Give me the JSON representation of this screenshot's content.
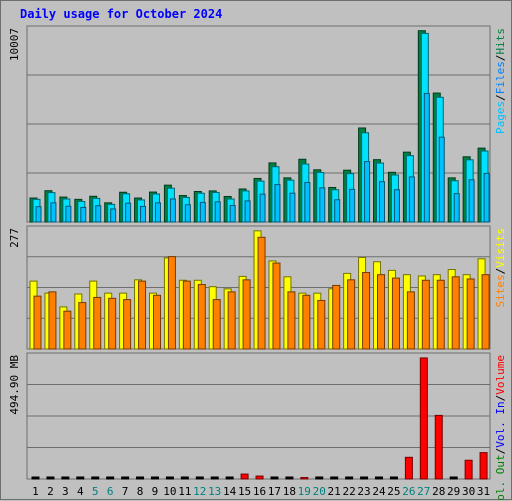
{
  "header": {
    "title": "Daily usage for October 2024"
  },
  "chart_data": {
    "type": "bar",
    "title": "Daily usage for October 2024",
    "days": [
      "1",
      "2",
      "3",
      "4",
      "5",
      "6",
      "7",
      "8",
      "9",
      "10",
      "11",
      "12",
      "13",
      "14",
      "15",
      "16",
      "17",
      "18",
      "19",
      "20",
      "21",
      "22",
      "23",
      "24",
      "25",
      "26",
      "27",
      "28",
      "29",
      "30",
      "31"
    ],
    "weekend_days": [
      "5",
      "6",
      "12",
      "13",
      "19",
      "20",
      "26",
      "27"
    ],
    "colors": {
      "hits": "#008040",
      "files": "#00e0ff",
      "pages": "#00c0ff",
      "visits": "#ffff00",
      "sites": "#ff8000",
      "kbytes": "#ff0000",
      "grid": "#6e6e6e",
      "title": "#0000ff",
      "weekday": "#000000",
      "weekend": "#008080"
    },
    "panels": [
      {
        "name": "hits-files-pages",
        "y_label": "10007",
        "ylim": [
          0,
          10007
        ],
        "legend": [
          "Hits",
          "Files",
          "Pages"
        ],
        "series": [
          {
            "name": "Hits",
            "values": [
              1250,
              1630,
              1300,
              1180,
              1340,
              1000,
              1550,
              1250,
              1560,
              1920,
              1380,
              1590,
              1620,
              1330,
              1720,
              2270,
              3080,
              2300,
              3270,
              2720,
              1800,
              2700,
              4900,
              3250,
              2590,
              3640,
              9970,
              6720,
              2300,
              3400,
              3850
            ]
          },
          {
            "name": "Files",
            "values": [
              1180,
              1530,
              1200,
              1070,
              1230,
              920,
              1470,
              1150,
              1460,
              1760,
              1280,
              1500,
              1540,
              1200,
              1620,
              2130,
              2880,
              2180,
              3020,
              2580,
              1680,
              2520,
              4650,
              3070,
              2450,
              3460,
              9830,
              6500,
              2150,
              3240,
              3700
            ]
          },
          {
            "name": "Pages",
            "values": [
              800,
              1000,
              820,
              760,
              850,
              680,
              980,
              810,
              1000,
              1200,
              900,
              1020,
              1050,
              860,
              1100,
              1450,
              1950,
              1500,
              2060,
              1780,
              1160,
              1700,
              3150,
              2100,
              1680,
              2350,
              6700,
              4420,
              1480,
              2200,
              2530
            ]
          }
        ]
      },
      {
        "name": "visits-sites",
        "y_label": "277",
        "ylim": [
          0,
          277
        ],
        "legend": [
          "Visits",
          "Sites"
        ],
        "series": [
          {
            "name": "Visits",
            "values": [
              158,
              130,
              98,
              128,
              158,
              130,
              130,
              161,
              130,
              212,
              160,
              160,
              145,
              140,
              169,
              275,
              205,
              168,
              130,
              130,
              140,
              176,
              213,
              203,
              183,
              173,
              170,
              173,
              185,
              173,
              210
            ]
          },
          {
            "name": "Sites",
            "values": [
              123,
              133,
              88,
              108,
              120,
              118,
              115,
              158,
              125,
              215,
              158,
              150,
              115,
              133,
              161,
              260,
              200,
              133,
              125,
              113,
              148,
              161,
              178,
              173,
              165,
              133,
              160,
              160,
              168,
              163,
              173
            ]
          }
        ]
      },
      {
        "name": "volume",
        "y_label": "494.90 MB",
        "ylim": [
          0,
          494.9
        ],
        "legend": [
          "Volume",
          "Vol. In",
          "Vol. Out"
        ],
        "series": [
          {
            "name": "Volume",
            "values": [
              3,
              3,
              3,
              3,
              3,
              3,
              3,
              3,
              3,
              3,
              3,
              3,
              3,
              4,
              20,
              12,
              5,
              3,
              6,
              3,
              3,
              3,
              3,
              3,
              4,
              88,
              491,
              258,
              4,
              76,
              107
            ]
          },
          {
            "name": "Vol. In",
            "values": [
              1,
              1,
              1,
              1,
              1,
              1,
              1,
              1,
              1,
              1,
              1,
              1,
              1,
              1,
              1,
              1,
              1,
              1,
              1,
              1,
              1,
              1,
              1,
              1,
              1,
              1,
              2,
              2,
              1,
              1,
              1
            ]
          },
          {
            "name": "Vol. Out",
            "values": [
              2,
              2,
              2,
              2,
              2,
              2,
              2,
              2,
              2,
              2,
              2,
              2,
              2,
              3,
              19,
              11,
              4,
              2,
              5,
              2,
              2,
              2,
              2,
              2,
              3,
              87,
              489,
              256,
              3,
              75,
              106
            ]
          }
        ]
      }
    ]
  }
}
